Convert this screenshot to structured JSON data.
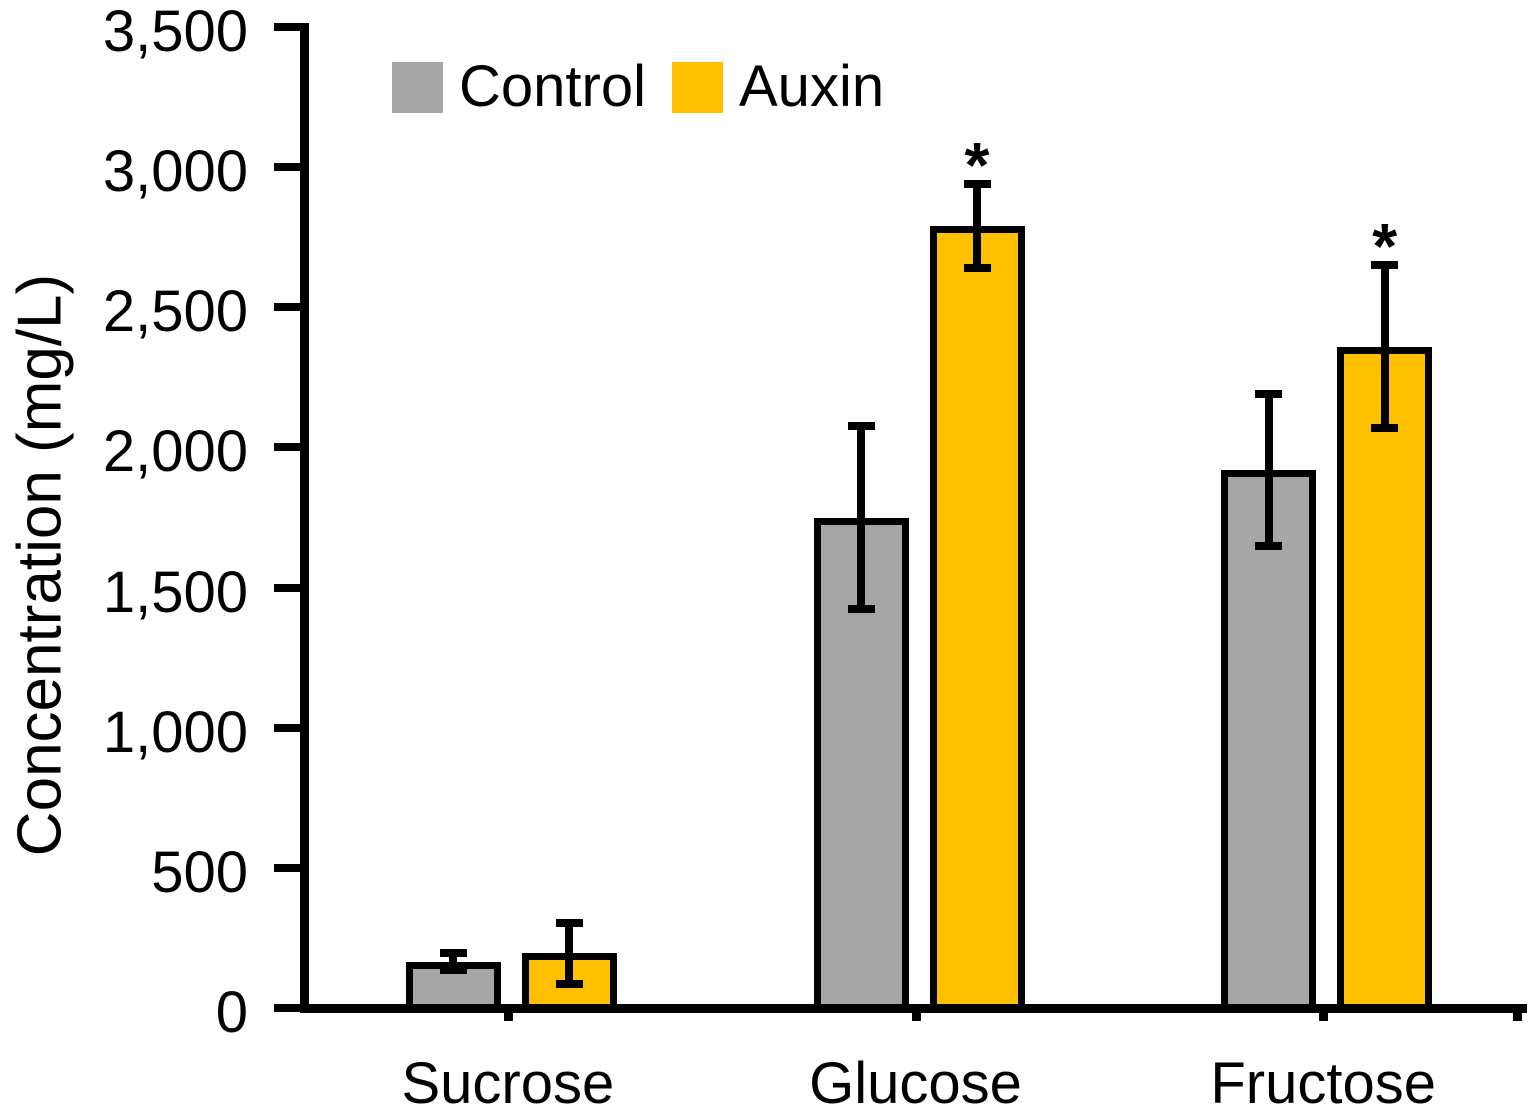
{
  "chart_data": {
    "type": "bar",
    "title": "",
    "xlabel": "",
    "ylabel": "Concentration (mg/L)",
    "ylim": [
      0,
      3500
    ],
    "ytick_step": 500,
    "yticks": [
      "0",
      "500",
      "1,000",
      "1,500",
      "2,000",
      "2,500",
      "3,000",
      "3,500"
    ],
    "ytick_values": [
      0,
      500,
      1000,
      1500,
      2000,
      2500,
      3000,
      3500
    ],
    "categories": [
      "Sucrose",
      "Glucose",
      "Fructose"
    ],
    "series": [
      {
        "name": "Control",
        "color": "#A6A6A6",
        "values": [
          165,
          1750,
          1920
        ],
        "errors": [
          30,
          325,
          270
        ]
      },
      {
        "name": "Auxin",
        "color": "#FFC000",
        "values": [
          195,
          2790,
          2360
        ],
        "errors": [
          110,
          150,
          290
        ]
      }
    ],
    "annotations": [
      {
        "text": "*",
        "category_index": 1,
        "series_index": 1
      },
      {
        "text": "*",
        "category_index": 2,
        "series_index": 1
      }
    ],
    "legend_position": "top",
    "grid": false,
    "axis_color": "#000000",
    "bar_border_color": "#000000",
    "error_bar_color": "#000000"
  }
}
